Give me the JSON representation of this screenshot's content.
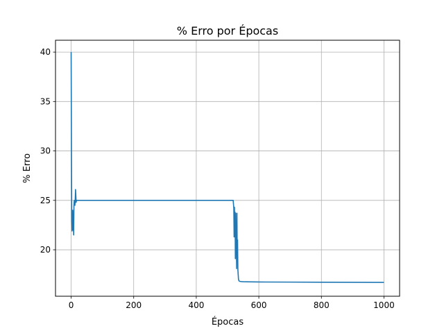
{
  "chart_data": {
    "type": "line",
    "title": "% Erro por Épocas",
    "xlabel": "Épocas",
    "ylabel": "% Erro",
    "xlim": [
      -50,
      1050
    ],
    "ylim": [
      15.3,
      41.2
    ],
    "xticks": [
      0,
      200,
      400,
      600,
      800,
      1000
    ],
    "yticks": [
      20,
      25,
      30,
      35,
      40
    ],
    "xtick_labels": [
      "0",
      "200",
      "400",
      "600",
      "800",
      "1000"
    ],
    "ytick_labels": [
      "20",
      "25",
      "30",
      "35",
      "40"
    ],
    "grid": true,
    "line_color": "#1f77b4",
    "series": [
      {
        "x": [
          0,
          1,
          2,
          3,
          4,
          5,
          6,
          7,
          8,
          9,
          10,
          11,
          12,
          13,
          14,
          15,
          16,
          17,
          18,
          20,
          30,
          100,
          200,
          300,
          400,
          500,
          518,
          520,
          521,
          522,
          523,
          524,
          525,
          526,
          527,
          528,
          529,
          530,
          531,
          532,
          533,
          534,
          535,
          536,
          537,
          538,
          540,
          545,
          550,
          560,
          580,
          600,
          700,
          800,
          900,
          1000
        ],
        "y": [
          40.0,
          30.0,
          23.0,
          21.9,
          22.5,
          24.0,
          22.0,
          23.5,
          21.5,
          24.5,
          25.0,
          24.8,
          24.5,
          25.0,
          26.1,
          25.5,
          24.8,
          25.0,
          25.0,
          25.0,
          25.0,
          25.0,
          25.0,
          25.0,
          25.0,
          25.0,
          25.0,
          24.2,
          21.3,
          24.3,
          22.0,
          23.8,
          19.1,
          23.7,
          20.5,
          22.0,
          18.1,
          23.7,
          19.3,
          21.0,
          18.0,
          17.5,
          17.0,
          16.9,
          16.85,
          16.82,
          16.8,
          16.78,
          16.77,
          16.76,
          16.75,
          16.74,
          16.73,
          16.72,
          16.71,
          16.7
        ]
      }
    ]
  }
}
